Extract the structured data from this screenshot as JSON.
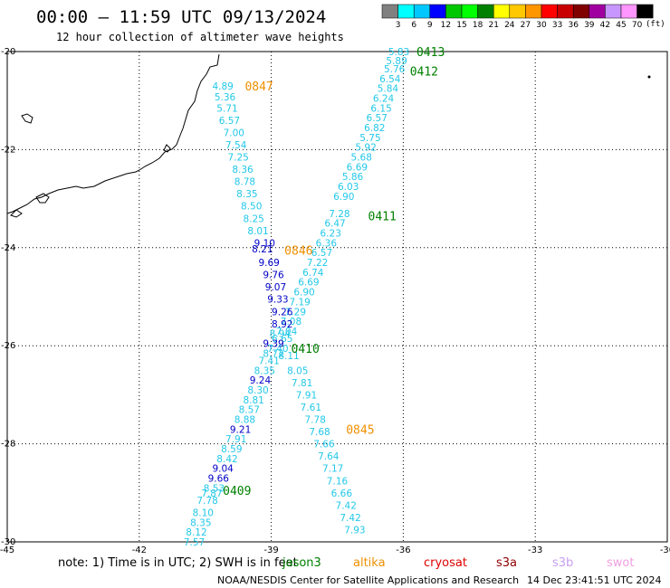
{
  "title": "00:00 – 11:59 UTC 09/13/2024",
  "subtitle": "12 hour collection of altimeter wave heights",
  "colors": {
    "light": "#22c8e8",
    "dark": "#0000c8",
    "pass_green": "#008000",
    "pass_orange": "#f09000",
    "grid": "#000000"
  },
  "colorbar": {
    "unit": "(ft)",
    "ticks": [
      "3",
      "6",
      "9",
      "12",
      "15",
      "18",
      "21",
      "24",
      "27",
      "30",
      "33",
      "36",
      "39",
      "42",
      "45",
      "70"
    ],
    "colors": [
      "#808080",
      "#00ffff",
      "#00c8ff",
      "#0000ff",
      "#00c800",
      "#00ff00",
      "#008000",
      "#ffff00",
      "#ffc800",
      "#ff9600",
      "#ff0000",
      "#c80000",
      "#800000",
      "#a000a0",
      "#c896ff",
      "#ff96ff",
      "#000000"
    ]
  },
  "axes": {
    "lon_ticks": [
      {
        "v": -45,
        "label": "-45"
      },
      {
        "v": -42,
        "label": "-42"
      },
      {
        "v": -39,
        "label": "-39"
      },
      {
        "v": -36,
        "label": "-36"
      },
      {
        "v": -33,
        "label": "-33"
      },
      {
        "v": -30,
        "label": "-30"
      }
    ],
    "lat_ticks": [
      {
        "v": -20,
        "label": "-20"
      },
      {
        "v": -22,
        "label": "-22"
      },
      {
        "v": -24,
        "label": "-24"
      },
      {
        "v": -26,
        "label": "-26"
      },
      {
        "v": -28,
        "label": "-28"
      },
      {
        "v": -30,
        "label": "-30"
      }
    ],
    "lon_range": [
      -45,
      -30
    ],
    "lat_range": [
      -30,
      -20
    ]
  },
  "passes": [
    {
      "label": "0413",
      "color": "green",
      "lon": -35.7,
      "lat": -20.0
    },
    {
      "label": "0412",
      "color": "green",
      "lon": -35.85,
      "lat": -20.4
    },
    {
      "label": "0847",
      "color": "orange",
      "lon": -39.6,
      "lat": -20.7
    },
    {
      "label": "0411",
      "color": "green",
      "lon": -36.8,
      "lat": -23.35
    },
    {
      "label": "0846",
      "color": "orange",
      "lon": -38.7,
      "lat": -24.05
    },
    {
      "label": "0410",
      "color": "green",
      "lon": -38.55,
      "lat": -26.05
    },
    {
      "label": "0845",
      "color": "orange",
      "lon": -37.3,
      "lat": -27.7
    },
    {
      "label": "0409",
      "color": "green",
      "lon": -40.1,
      "lat": -28.95
    }
  ],
  "tracks": [
    {
      "lon": -36.1,
      "lat": -20.0,
      "v": "5.83",
      "c": "l"
    },
    {
      "lon": -36.15,
      "lat": -20.18,
      "v": "5.89",
      "c": "l"
    },
    {
      "lon": -36.2,
      "lat": -20.35,
      "v": "5.76",
      "c": "l"
    },
    {
      "lon": -36.3,
      "lat": -20.55,
      "v": "6.54",
      "c": "l"
    },
    {
      "lon": -36.35,
      "lat": -20.75,
      "v": "5.84",
      "c": "l"
    },
    {
      "lon": -36.45,
      "lat": -20.95,
      "v": "6.24",
      "c": "l"
    },
    {
      "lon": -36.5,
      "lat": -21.15,
      "v": "6.15",
      "c": "l"
    },
    {
      "lon": -36.6,
      "lat": -21.35,
      "v": "6.57",
      "c": "l"
    },
    {
      "lon": -36.65,
      "lat": -21.55,
      "v": "6.82",
      "c": "l"
    },
    {
      "lon": -36.75,
      "lat": -21.75,
      "v": "5.75",
      "c": "l"
    },
    {
      "lon": -36.85,
      "lat": -21.95,
      "v": "5.92",
      "c": "l"
    },
    {
      "lon": -36.95,
      "lat": -22.15,
      "v": "5.68",
      "c": "l"
    },
    {
      "lon": -37.05,
      "lat": -22.35,
      "v": "6.69",
      "c": "l"
    },
    {
      "lon": -37.15,
      "lat": -22.55,
      "v": "5.86",
      "c": "l"
    },
    {
      "lon": -37.25,
      "lat": -22.75,
      "v": "6.03",
      "c": "l"
    },
    {
      "lon": -37.35,
      "lat": -22.95,
      "v": "6.90",
      "c": "l"
    },
    {
      "lon": -37.45,
      "lat": -23.3,
      "v": "7.28",
      "c": "l"
    },
    {
      "lon": -37.55,
      "lat": -23.5,
      "v": "6.47",
      "c": "l"
    },
    {
      "lon": -37.65,
      "lat": -23.7,
      "v": "6.23",
      "c": "l"
    },
    {
      "lon": -37.75,
      "lat": -23.9,
      "v": "6.36",
      "c": "l"
    },
    {
      "lon": -37.85,
      "lat": -24.1,
      "v": "6.57",
      "c": "l"
    },
    {
      "lon": -37.95,
      "lat": -24.3,
      "v": "7.22",
      "c": "l"
    },
    {
      "lon": -38.05,
      "lat": -24.5,
      "v": "6.74",
      "c": "l"
    },
    {
      "lon": -38.15,
      "lat": -24.7,
      "v": "6.69",
      "c": "l"
    },
    {
      "lon": -38.25,
      "lat": -24.9,
      "v": "6.90",
      "c": "l"
    },
    {
      "lon": -38.35,
      "lat": -25.1,
      "v": "7.19",
      "c": "l"
    },
    {
      "lon": -38.45,
      "lat": -25.3,
      "v": "7.29",
      "c": "l"
    },
    {
      "lon": -38.55,
      "lat": -25.5,
      "v": "7.08",
      "c": "l"
    },
    {
      "lon": -38.65,
      "lat": -25.7,
      "v": "7.04",
      "c": "l"
    },
    {
      "lon": -38.75,
      "lat": -25.85,
      "v": "6.65",
      "c": "l"
    },
    {
      "lon": -38.85,
      "lat": -26.05,
      "v": "7.40",
      "c": "l"
    },
    {
      "lon": -38.6,
      "lat": -26.2,
      "v": "8.11",
      "c": "l"
    },
    {
      "lon": -38.4,
      "lat": -26.5,
      "v": "8.05",
      "c": "l"
    },
    {
      "lon": -38.3,
      "lat": -26.75,
      "v": "7.81",
      "c": "l"
    },
    {
      "lon": -38.2,
      "lat": -27.0,
      "v": "7.91",
      "c": "l"
    },
    {
      "lon": -38.1,
      "lat": -27.25,
      "v": "7.61",
      "c": "l"
    },
    {
      "lon": -38.0,
      "lat": -27.5,
      "v": "7.78",
      "c": "l"
    },
    {
      "lon": -37.9,
      "lat": -27.75,
      "v": "7.68",
      "c": "l"
    },
    {
      "lon": -37.8,
      "lat": -28.0,
      "v": "7.66",
      "c": "l"
    },
    {
      "lon": -37.7,
      "lat": -28.25,
      "v": "7.64",
      "c": "l"
    },
    {
      "lon": -37.6,
      "lat": -28.5,
      "v": "7.17",
      "c": "l"
    },
    {
      "lon": -37.5,
      "lat": -28.75,
      "v": "7.16",
      "c": "l"
    },
    {
      "lon": -37.4,
      "lat": -29.0,
      "v": "6.66",
      "c": "l"
    },
    {
      "lon": -37.3,
      "lat": -29.25,
      "v": "7.42",
      "c": "l"
    },
    {
      "lon": -37.2,
      "lat": -29.5,
      "v": "7.42",
      "c": "l"
    },
    {
      "lon": -37.1,
      "lat": -29.75,
      "v": "7.93",
      "c": "l"
    },
    {
      "lon": -40.1,
      "lat": -20.7,
      "v": "4.89",
      "c": "l"
    },
    {
      "lon": -40.05,
      "lat": -20.92,
      "v": "5.36",
      "c": "l"
    },
    {
      "lon": -40.0,
      "lat": -21.15,
      "v": "5.71",
      "c": "l"
    },
    {
      "lon": -39.95,
      "lat": -21.4,
      "v": "6.57",
      "c": "l"
    },
    {
      "lon": -39.85,
      "lat": -21.65,
      "v": "7.00",
      "c": "l"
    },
    {
      "lon": -39.8,
      "lat": -21.9,
      "v": "7.54",
      "c": "l"
    },
    {
      "lon": -39.75,
      "lat": -22.15,
      "v": "7.25",
      "c": "l"
    },
    {
      "lon": -39.65,
      "lat": -22.4,
      "v": "8.36",
      "c": "l"
    },
    {
      "lon": -39.6,
      "lat": -22.65,
      "v": "8.78",
      "c": "l"
    },
    {
      "lon": -39.55,
      "lat": -22.9,
      "v": "8.35",
      "c": "l"
    },
    {
      "lon": -39.45,
      "lat": -23.15,
      "v": "8.50",
      "c": "l"
    },
    {
      "lon": -39.4,
      "lat": -23.4,
      "v": "8.25",
      "c": "l"
    },
    {
      "lon": -39.3,
      "lat": -23.65,
      "v": "8.01",
      "c": "l"
    },
    {
      "lon": -39.15,
      "lat": -23.9,
      "v": "9.10",
      "c": "d"
    },
    {
      "lon": -39.2,
      "lat": -24.02,
      "v": "8.21",
      "c": "d"
    },
    {
      "lon": -39.05,
      "lat": -24.3,
      "v": "9.69",
      "c": "d"
    },
    {
      "lon": -38.95,
      "lat": -24.55,
      "v": "9.76",
      "c": "d"
    },
    {
      "lon": -38.9,
      "lat": -24.8,
      "v": "9.07",
      "c": "d"
    },
    {
      "lon": -38.85,
      "lat": -25.05,
      "v": "9.33",
      "c": "d"
    },
    {
      "lon": -38.75,
      "lat": -25.3,
      "v": "9.26",
      "c": "d"
    },
    {
      "lon": -38.75,
      "lat": -25.55,
      "v": "8.92",
      "c": "d"
    },
    {
      "lon": -38.8,
      "lat": -25.75,
      "v": "8.94",
      "c": "l"
    },
    {
      "lon": -38.95,
      "lat": -25.95,
      "v": "9.39",
      "c": "d"
    },
    {
      "lon": -38.95,
      "lat": -26.15,
      "v": "8.72",
      "c": "l"
    },
    {
      "lon": -39.05,
      "lat": -26.3,
      "v": "7.41",
      "c": "l"
    },
    {
      "lon": -39.15,
      "lat": -26.5,
      "v": "8.35",
      "c": "l"
    },
    {
      "lon": -39.25,
      "lat": -26.7,
      "v": "9.24",
      "c": "d"
    },
    {
      "lon": -39.3,
      "lat": -26.9,
      "v": "8.30",
      "c": "l"
    },
    {
      "lon": -39.4,
      "lat": -27.1,
      "v": "8.81",
      "c": "l"
    },
    {
      "lon": -39.5,
      "lat": -27.3,
      "v": "8.57",
      "c": "l"
    },
    {
      "lon": -39.6,
      "lat": -27.5,
      "v": "8.88",
      "c": "l"
    },
    {
      "lon": -39.7,
      "lat": -27.7,
      "v": "9.21",
      "c": "d"
    },
    {
      "lon": -39.8,
      "lat": -27.9,
      "v": "7.91",
      "c": "l"
    },
    {
      "lon": -39.9,
      "lat": -28.1,
      "v": "8.59",
      "c": "l"
    },
    {
      "lon": -40.0,
      "lat": -28.3,
      "v": "8.42",
      "c": "l"
    },
    {
      "lon": -40.1,
      "lat": -28.5,
      "v": "9.04",
      "c": "d"
    },
    {
      "lon": -40.2,
      "lat": -28.7,
      "v": "9.66",
      "c": "d"
    },
    {
      "lon": -40.3,
      "lat": -28.9,
      "v": "8.53",
      "c": "l"
    },
    {
      "lon": -40.35,
      "lat": -29.0,
      "v": "7.87",
      "c": "l"
    },
    {
      "lon": -40.45,
      "lat": -29.15,
      "v": "7.78",
      "c": "l"
    },
    {
      "lon": -40.55,
      "lat": -29.4,
      "v": "8.10",
      "c": "l"
    },
    {
      "lon": -40.6,
      "lat": -29.6,
      "v": "8.35",
      "c": "l"
    },
    {
      "lon": -40.7,
      "lat": -29.8,
      "v": "8.12",
      "c": "l"
    },
    {
      "lon": -40.75,
      "lat": -30.0,
      "v": "7.57",
      "c": "l"
    }
  ],
  "note": {
    "prefix": "note:  1) Time is in UTC;  2) SWH is in feet",
    "sats": [
      {
        "name": "jason3",
        "color": "#008000"
      },
      {
        "name": "altika",
        "color": "#f09000"
      },
      {
        "name": "cryosat",
        "color": "#e00000"
      },
      {
        "name": "s3a",
        "color": "#900000"
      },
      {
        "name": "s3b",
        "color": "#c8a0f0"
      },
      {
        "name": "swot",
        "color": "#f0a0e0"
      }
    ]
  },
  "footer": {
    "org": "NOAA/NESDIS Center for Satellite Applications and Research",
    "timestamp": "14 Dec 23:41:51 UTC 2024"
  }
}
